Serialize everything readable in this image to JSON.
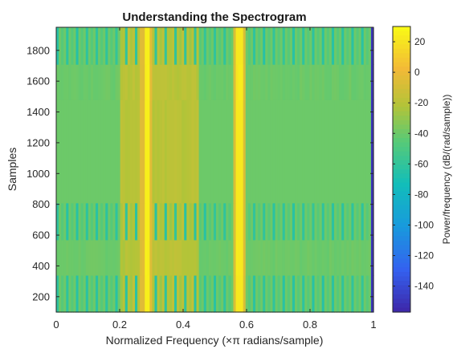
{
  "chart_data": {
    "type": "heatmap",
    "title": "Understanding the Spectrogram",
    "xlabel": "Normalized Frequency (×π radians/sample)",
    "ylabel": "Samples",
    "xlim": [
      0,
      1
    ],
    "ylim": [
      100,
      1950
    ],
    "x_ticks": [
      0,
      0.2,
      0.4,
      0.6,
      0.8,
      1
    ],
    "x_tick_labels": [
      "0",
      "0.2",
      "0.4",
      "0.6",
      "0.8",
      "1"
    ],
    "y_ticks": [
      200,
      400,
      600,
      800,
      1000,
      1200,
      1400,
      1600,
      1800
    ],
    "y_tick_labels": [
      "200",
      "400",
      "600",
      "800",
      "1000",
      "1200",
      "1400",
      "1600",
      "1800"
    ],
    "colorbar": {
      "label": "Power/frequency (dB/(rad/sample))",
      "range": [
        -157,
        30
      ],
      "ticks": [
        20,
        0,
        -20,
        -40,
        -60,
        -80,
        -100,
        -120,
        -140
      ],
      "tick_labels": [
        "20",
        "0",
        "-20",
        "-40",
        "-60",
        "-80",
        "-100",
        "-120",
        "-140"
      ],
      "colormap": "parula"
    },
    "time_segments": [
      {
        "from": 100,
        "to": 340,
        "type": "striped"
      },
      {
        "from": 340,
        "to": 570,
        "type": "banded"
      },
      {
        "from": 570,
        "to": 810,
        "type": "striped"
      },
      {
        "from": 810,
        "to": 1480,
        "type": "smooth"
      },
      {
        "from": 1480,
        "to": 1710,
        "type": "banded"
      },
      {
        "from": 1710,
        "to": 1950,
        "type": "striped"
      }
    ],
    "frequency_bins": 129,
    "peak_frequencies": [
      {
        "freq": 0.285,
        "power_db": 25
      },
      {
        "freq": 0.578,
        "power_db": 22
      }
    ],
    "broad_band": {
      "from": 0.2,
      "to": 0.45,
      "power_db": -20
    },
    "background_power_db": -40,
    "stripe_power_db": -65,
    "nyquist_edge_power_db": -150
  }
}
